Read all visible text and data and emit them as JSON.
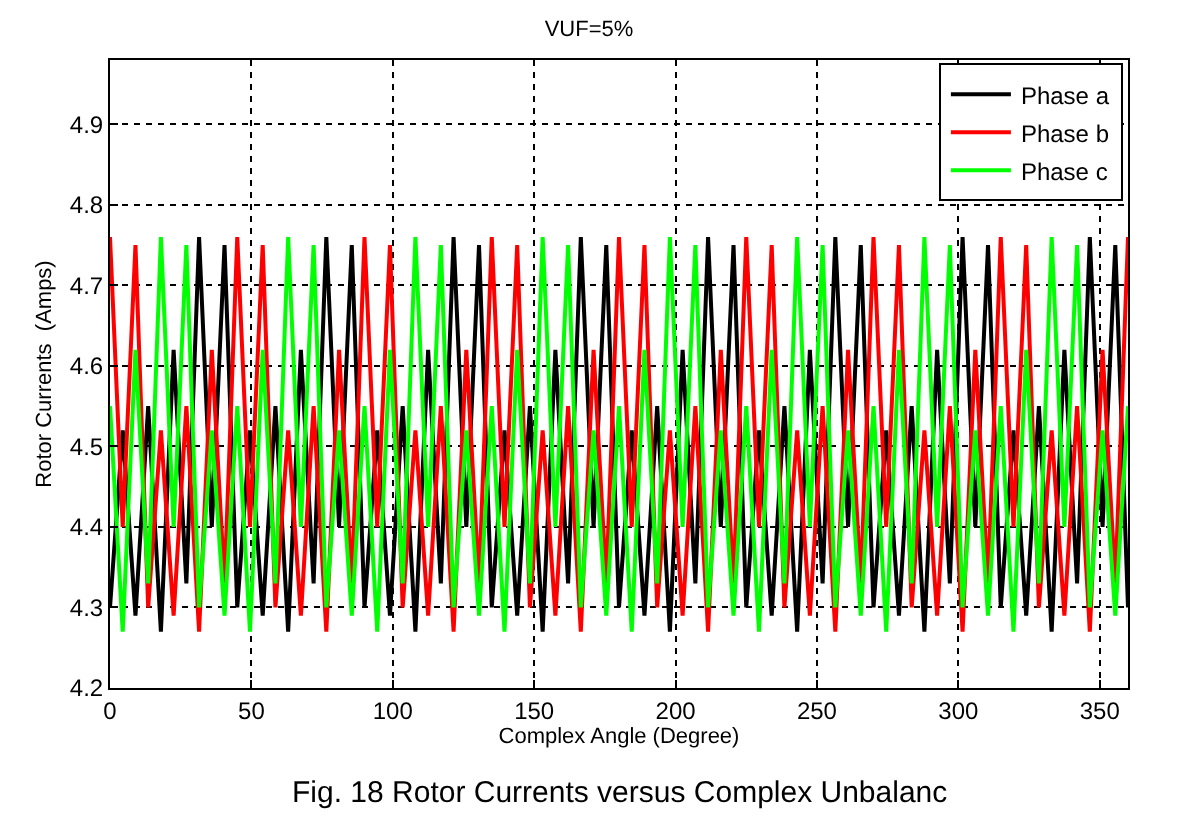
{
  "chart_data": {
    "type": "line",
    "title": "VUF=5%",
    "xlabel": "Complex Angle (Degree)",
    "ylabel": "Rotor Currents  (Amps)",
    "annotations": [
      "Fig. 18 Rotor Currents versus Complex Unbalanc"
    ],
    "x": [
      0,
      4.5,
      9,
      13.5,
      18,
      22.5,
      27,
      31.5,
      36,
      40.5,
      45,
      49.5,
      54,
      58.5,
      63,
      67.5,
      72,
      76.5,
      81,
      85.5,
      90,
      94.5,
      99,
      103.5,
      108,
      112.5,
      117,
      121.5,
      126,
      130.5,
      135,
      139.5,
      144,
      148.5,
      153,
      157.5,
      162,
      166.5,
      171,
      175.5,
      180,
      184.5,
      189,
      193.5,
      198,
      202.5,
      207,
      211.5,
      216,
      220.5,
      225,
      229.5,
      234,
      238.5,
      243,
      247.5,
      252,
      256.5,
      261,
      265.5,
      270,
      274.5,
      279,
      283.5,
      288,
      292.5,
      297,
      301.5,
      306,
      310.5,
      315,
      319.5,
      324,
      328.5,
      333,
      337.5,
      342,
      346.5,
      351,
      355.5,
      360
    ],
    "series": [
      {
        "name": "Phase a",
        "color": "#000000",
        "values": [
          4.3,
          4.52,
          4.29,
          4.55,
          4.27,
          4.62,
          4.33,
          4.76,
          4.4,
          4.75,
          4.3,
          4.52,
          4.29,
          4.55,
          4.27,
          4.62,
          4.33,
          4.76,
          4.4,
          4.75,
          4.3,
          4.52,
          4.29,
          4.55,
          4.27,
          4.62,
          4.33,
          4.76,
          4.4,
          4.75,
          4.3,
          4.52,
          4.29,
          4.55,
          4.27,
          4.62,
          4.33,
          4.76,
          4.4,
          4.75,
          4.3,
          4.52,
          4.29,
          4.55,
          4.27,
          4.62,
          4.33,
          4.76,
          4.4,
          4.75,
          4.3,
          4.52,
          4.29,
          4.55,
          4.27,
          4.62,
          4.33,
          4.76,
          4.4,
          4.75,
          4.3,
          4.52,
          4.29,
          4.55,
          4.27,
          4.62,
          4.33,
          4.76,
          4.4,
          4.75,
          4.3,
          4.52,
          4.29,
          4.55,
          4.27,
          4.62,
          4.33,
          4.76,
          4.4,
          4.75,
          4.3
        ]
      },
      {
        "name": "Phase b",
        "color": "#ff0000",
        "values": [
          4.76,
          4.4,
          4.75,
          4.3,
          4.52,
          4.29,
          4.55,
          4.27,
          4.62,
          4.33,
          4.76,
          4.4,
          4.75,
          4.3,
          4.52,
          4.29,
          4.55,
          4.27,
          4.62,
          4.33,
          4.76,
          4.4,
          4.75,
          4.3,
          4.52,
          4.29,
          4.55,
          4.27,
          4.62,
          4.33,
          4.76,
          4.4,
          4.75,
          4.3,
          4.52,
          4.29,
          4.55,
          4.27,
          4.62,
          4.33,
          4.76,
          4.4,
          4.75,
          4.3,
          4.52,
          4.29,
          4.55,
          4.27,
          4.62,
          4.33,
          4.76,
          4.4,
          4.75,
          4.3,
          4.52,
          4.29,
          4.55,
          4.27,
          4.62,
          4.33,
          4.76,
          4.4,
          4.75,
          4.3,
          4.52,
          4.29,
          4.55,
          4.27,
          4.62,
          4.33,
          4.76,
          4.4,
          4.75,
          4.3,
          4.52,
          4.29,
          4.55,
          4.27,
          4.62,
          4.33,
          4.76
        ]
      },
      {
        "name": "Phase c",
        "color": "#00ff00",
        "values": [
          4.55,
          4.27,
          4.62,
          4.33,
          4.76,
          4.4,
          4.75,
          4.3,
          4.52,
          4.29,
          4.55,
          4.27,
          4.62,
          4.33,
          4.76,
          4.4,
          4.75,
          4.3,
          4.52,
          4.29,
          4.55,
          4.27,
          4.62,
          4.33,
          4.76,
          4.4,
          4.75,
          4.3,
          4.52,
          4.29,
          4.55,
          4.27,
          4.62,
          4.33,
          4.76,
          4.4,
          4.75,
          4.3,
          4.52,
          4.29,
          4.55,
          4.27,
          4.62,
          4.33,
          4.76,
          4.4,
          4.75,
          4.3,
          4.52,
          4.29,
          4.55,
          4.27,
          4.62,
          4.33,
          4.76,
          4.4,
          4.75,
          4.3,
          4.52,
          4.29,
          4.55,
          4.27,
          4.62,
          4.33,
          4.76,
          4.4,
          4.75,
          4.3,
          4.52,
          4.29,
          4.55,
          4.27,
          4.62,
          4.33,
          4.76,
          4.4,
          4.75,
          4.3,
          4.52,
          4.29,
          4.55
        ]
      }
    ],
    "xlim": [
      0,
      360
    ],
    "xticks": [
      0,
      50,
      100,
      150,
      200,
      250,
      300,
      350
    ],
    "ylim": [
      4.2,
      4.98
    ],
    "yticks": [
      4.2,
      4.3,
      4.4,
      4.5,
      4.6,
      4.7,
      4.8,
      4.9
    ],
    "grid": true,
    "legend": "top right",
    "marker": "none",
    "line_style": "solid"
  }
}
